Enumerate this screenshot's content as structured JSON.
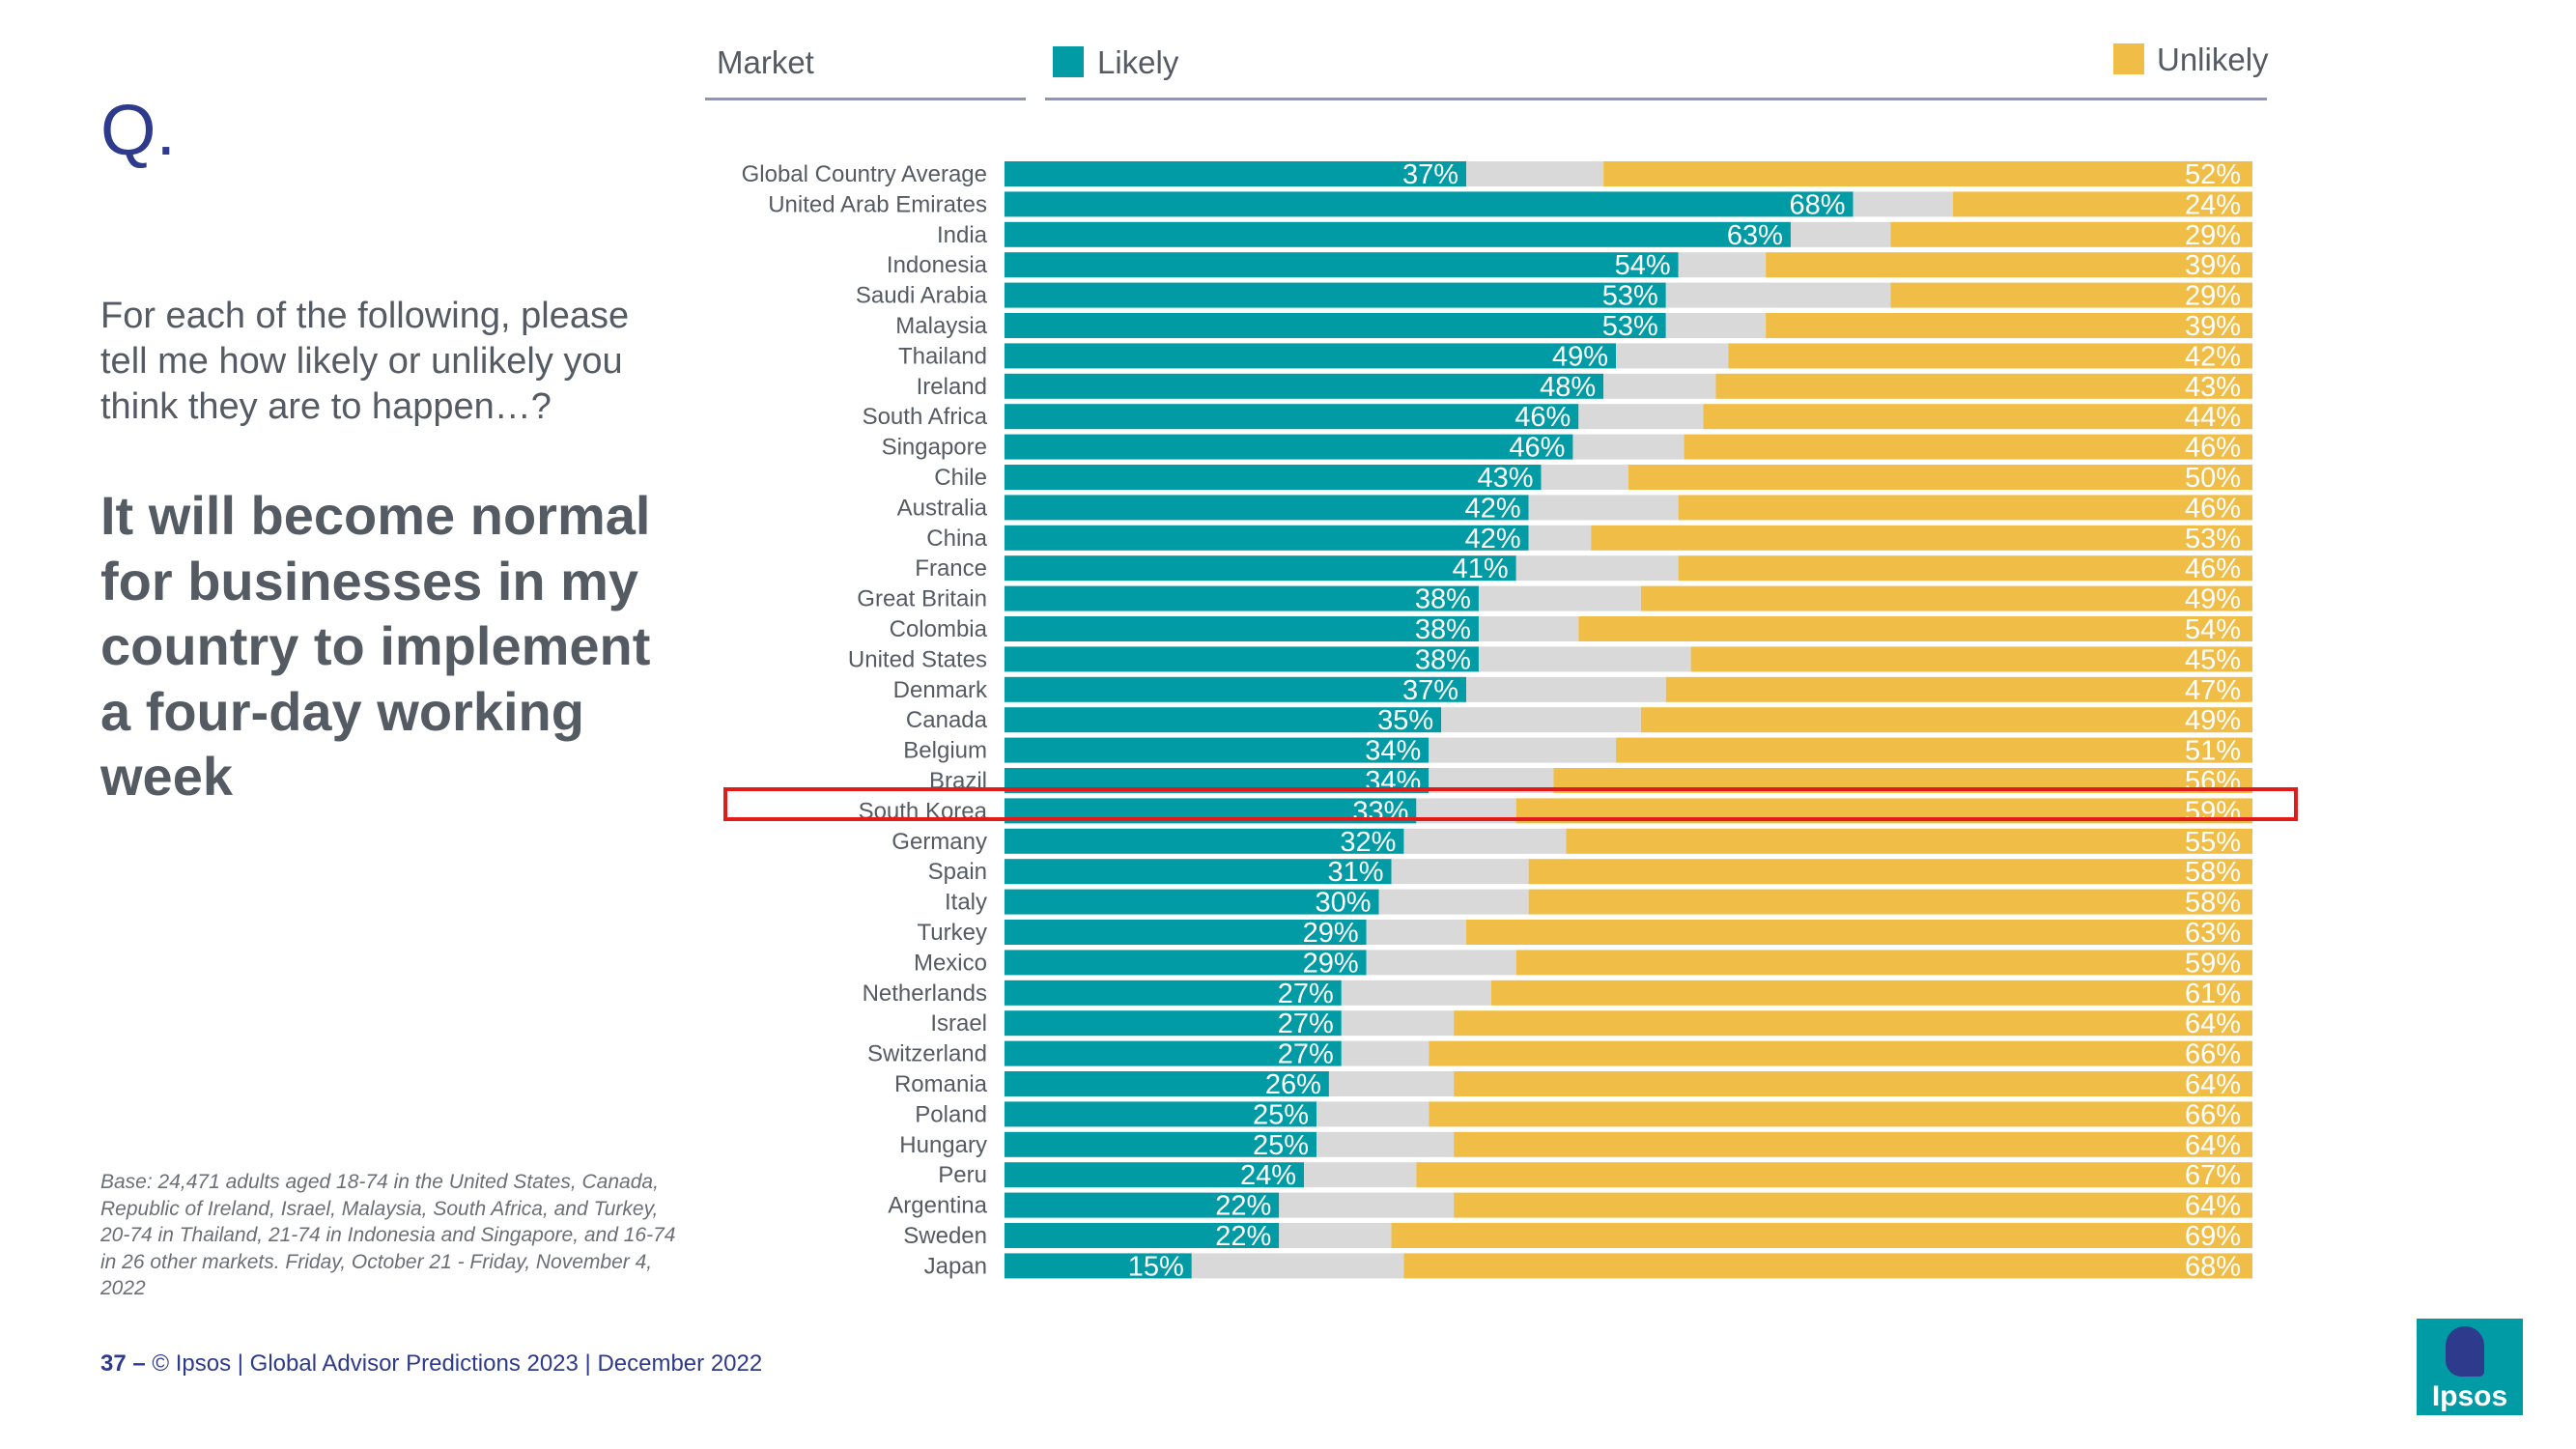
{
  "slide": {
    "q_mark": "Q.",
    "question": "For each of the following, please tell me how likely or unlikely you think they are to happen…?",
    "statement": "It will become normal for businesses in my country to implement a four-day working week",
    "base_note": "Base: 24,471 adults aged 18-74 in the United States, Canada, Republic of Ireland, Israel, Malaysia, South Africa, and Turkey, 20-74 in Thailand, 21-74 in Indonesia and Singapore, and 16-74 in 26 other markets. Friday, October 21 -  Friday, November 4, 2022",
    "footer_page": "37 –",
    "footer_text": "© Ipsos | Global Advisor Predictions 2023 | December 2022",
    "logo_text": "Ipsos"
  },
  "colors": {
    "likely": "#009ba4",
    "neutral": "#d9d9d9",
    "unlikely": "#f0bd46",
    "highlight": "#e21a1a",
    "brand": "#2e3a8c"
  },
  "chart_data": {
    "type": "bar",
    "orientation": "horizontal",
    "stacked": true,
    "market_header": "Market",
    "legend": [
      {
        "name": "Likely",
        "color": "#009ba4"
      },
      {
        "name": "Unlikely",
        "color": "#f0bd46"
      }
    ],
    "highlighted_category": "South Korea",
    "categories": [
      "Global Country Average",
      "United Arab Emirates",
      "India",
      "Indonesia",
      "Saudi Arabia",
      "Malaysia",
      "Thailand",
      "Ireland",
      "South Africa",
      "Singapore",
      "Chile",
      "Australia",
      "China",
      "France",
      "Great Britain",
      "Colombia",
      "United States",
      "Denmark",
      "Canada",
      "Belgium",
      "Brazil",
      "South Korea",
      "Germany",
      "Spain",
      "Italy",
      "Turkey",
      "Mexico",
      "Netherlands",
      "Israel",
      "Switzerland",
      "Romania",
      "Poland",
      "Hungary",
      "Peru",
      "Argentina",
      "Sweden",
      "Japan"
    ],
    "series": [
      {
        "name": "Likely",
        "values": [
          37,
          68,
          63,
          54,
          53,
          53,
          49,
          48,
          46,
          46,
          43,
          42,
          42,
          41,
          38,
          38,
          38,
          37,
          35,
          34,
          34,
          33,
          32,
          31,
          30,
          29,
          29,
          27,
          27,
          27,
          26,
          25,
          25,
          24,
          22,
          22,
          15
        ]
      },
      {
        "name": "Neither / Don't know",
        "values": [
          11,
          8,
          8,
          7,
          18,
          8,
          9,
          9,
          10,
          9,
          7,
          12,
          5,
          13,
          13,
          8,
          17,
          16,
          16,
          15,
          10,
          8,
          13,
          11,
          12,
          8,
          12,
          12,
          9,
          7,
          10,
          9,
          11,
          9,
          14,
          9,
          17
        ]
      },
      {
        "name": "Unlikely",
        "values": [
          52,
          24,
          29,
          39,
          29,
          39,
          42,
          43,
          44,
          46,
          50,
          46,
          53,
          46,
          49,
          54,
          45,
          47,
          49,
          51,
          56,
          59,
          55,
          58,
          58,
          63,
          59,
          61,
          64,
          66,
          64,
          66,
          64,
          67,
          64,
          69,
          68
        ]
      }
    ],
    "xlim": [
      0,
      100
    ]
  }
}
